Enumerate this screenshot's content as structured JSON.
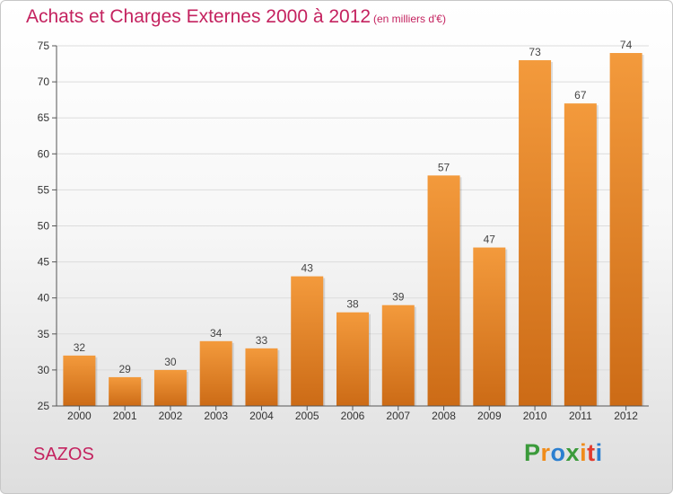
{
  "title": "Achats et Charges Externes 2000 à 2012",
  "unit": "(en milliers d'€)",
  "commune": "SAZOS",
  "brand": {
    "letters": [
      "P",
      "r",
      "o",
      "x",
      "i",
      "t",
      "i"
    ],
    "colors": [
      "#3a9a3a",
      "#f08c1a",
      "#2b7fd0",
      "#3a9a3a",
      "#f08c1a",
      "#e23b2e",
      "#2b7fd0"
    ]
  },
  "colors": {
    "bar": "#f39a3c",
    "bar_dark": "#cc6b16",
    "title": "#c4225f"
  },
  "chart_data": {
    "type": "bar",
    "title": "Achats et Charges Externes 2000 à 2012",
    "subtitle": "(en milliers d'€)",
    "categories": [
      "2000",
      "2001",
      "2002",
      "2003",
      "2004",
      "2005",
      "2006",
      "2007",
      "2008",
      "2009",
      "2010",
      "2011",
      "2012"
    ],
    "values": [
      32,
      29,
      30,
      34,
      33,
      43,
      38,
      39,
      57,
      47,
      73,
      67,
      74
    ],
    "ylim": [
      25,
      75
    ],
    "yticks": [
      25,
      30,
      35,
      40,
      45,
      50,
      55,
      60,
      65,
      70,
      75
    ],
    "grid": true
  }
}
